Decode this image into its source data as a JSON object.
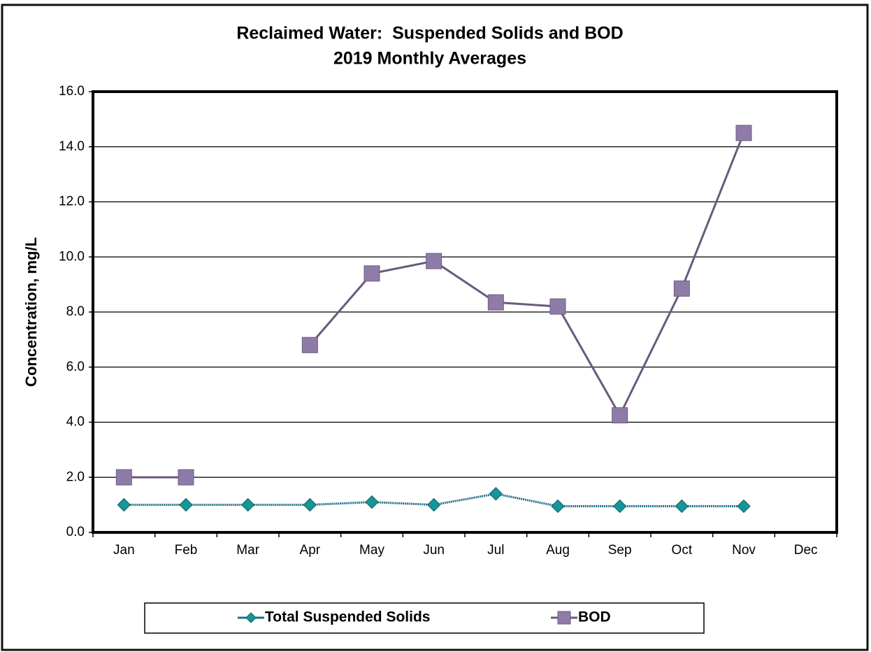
{
  "chart_data": {
    "type": "line",
    "title": "Reclaimed Water:  Suspended Solids and BOD",
    "subtitle": "2019 Monthly Averages",
    "y_label": "Concentration, mg/L",
    "categories": [
      "Jan",
      "Feb",
      "Mar",
      "Apr",
      "May",
      "Jun",
      "Jul",
      "Aug",
      "Sep",
      "Oct",
      "Nov",
      "Dec"
    ],
    "series": [
      {
        "name": "Total Suspended Solids",
        "color": "#17969a",
        "marker": "diamond",
        "values": [
          1.0,
          1.0,
          1.0,
          1.0,
          1.1,
          1.0,
          1.4,
          0.95,
          0.95,
          0.95,
          0.95,
          null
        ]
      },
      {
        "name": "BOD",
        "color": "#8f7ba8",
        "marker": "square",
        "values": [
          2.0,
          2.0,
          null,
          6.8,
          9.4,
          9.85,
          8.35,
          8.2,
          4.25,
          8.85,
          14.5,
          null
        ]
      }
    ],
    "ylim": [
      0,
      16
    ],
    "yticks": [
      {
        "value": 0,
        "label": "0.0"
      },
      {
        "value": 2,
        "label": "2.0"
      },
      {
        "value": 4,
        "label": "4.0"
      },
      {
        "value": 6,
        "label": "6.0"
      },
      {
        "value": 8,
        "label": "8.0"
      },
      {
        "value": 10,
        "label": "10.0"
      },
      {
        "value": 12,
        "label": "12.0"
      },
      {
        "value": 14,
        "label": "14.0"
      },
      {
        "value": 16,
        "label": "16.0"
      }
    ],
    "grid": true,
    "legend": "bottom"
  }
}
